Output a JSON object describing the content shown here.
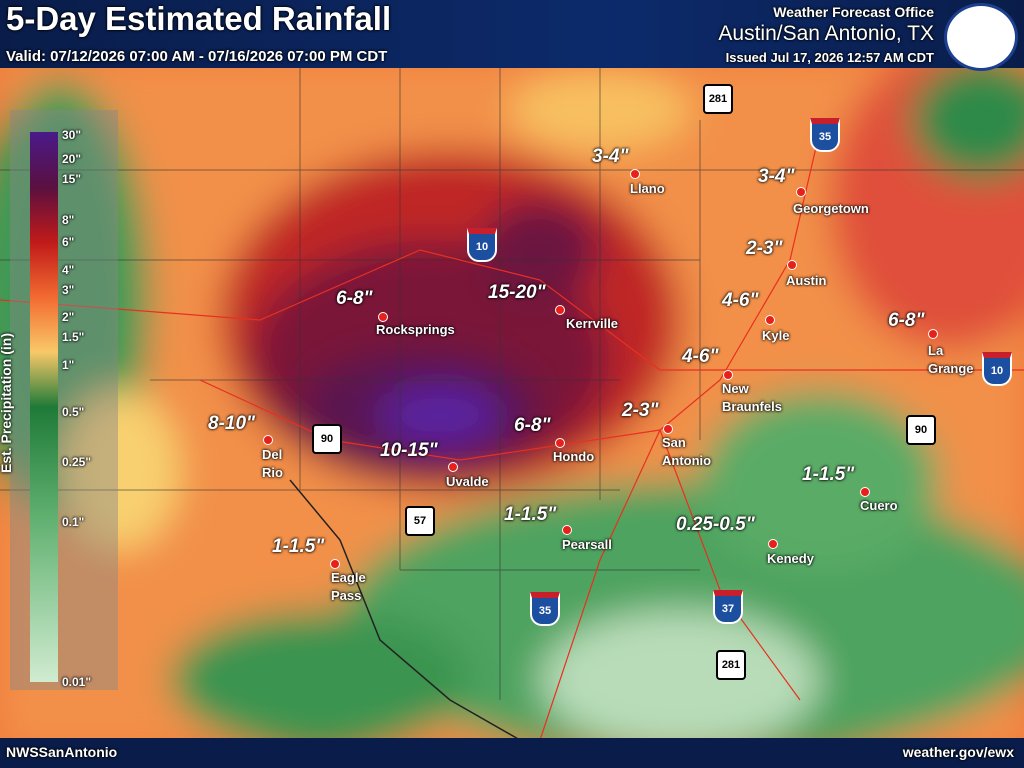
{
  "header": {
    "title": "5-Day Estimated Rainfall",
    "valid": "Valid: 07/12/2026 07:00 AM - 07/16/2026 07:00 PM CDT",
    "office": "Weather Forecast Office",
    "location": "Austin/San Antonio, TX",
    "issued": "Issued Jul 17, 2026 12:57 AM CDT"
  },
  "legend": {
    "title": "Est. Precipitation (in)",
    "labels": [
      "30\"",
      "20\"",
      "15\"",
      "8\"",
      "6\"",
      "4\"",
      "3\"",
      "2\"",
      "1.5\"",
      "1\"",
      "0.5\"",
      "0.25\"",
      "0.1\"",
      "0.01\""
    ]
  },
  "cities": [
    {
      "name": "Llano",
      "amount": "3-4\""
    },
    {
      "name": "Georgetown",
      "amount": "3-4\""
    },
    {
      "name": "Austin",
      "amount": "2-3\""
    },
    {
      "name": "Kyle",
      "amount": "4-6\""
    },
    {
      "name": "La Grange",
      "amount": "6-8\""
    },
    {
      "name": "Kerrville",
      "amount": "15-20\""
    },
    {
      "name": "Rocksprings",
      "amount": "6-8\""
    },
    {
      "name": "New Braunfels",
      "amount": "4-6\""
    },
    {
      "name": "San Antonio",
      "amount": "2-3\""
    },
    {
      "name": "Del Rio",
      "amount": "8-10\""
    },
    {
      "name": "Uvalde",
      "amount": "10-15\""
    },
    {
      "name": "Hondo",
      "amount": "6-8\""
    },
    {
      "name": "Cuero",
      "amount": "1-1.5\""
    },
    {
      "name": "Pearsall",
      "amount": "1-1.5\""
    },
    {
      "name": "Kenedy",
      "amount": "0.25-0.5\""
    },
    {
      "name": "Eagle Pass",
      "amount": "1-1.5\""
    }
  ],
  "interstates": [
    "35",
    "10",
    "10",
    "35",
    "37"
  ],
  "us_routes": [
    "281",
    "90",
    "90",
    "57",
    "281"
  ],
  "footer": {
    "left": "NWSSanAntonio",
    "right": "weather.gov/ewx"
  }
}
